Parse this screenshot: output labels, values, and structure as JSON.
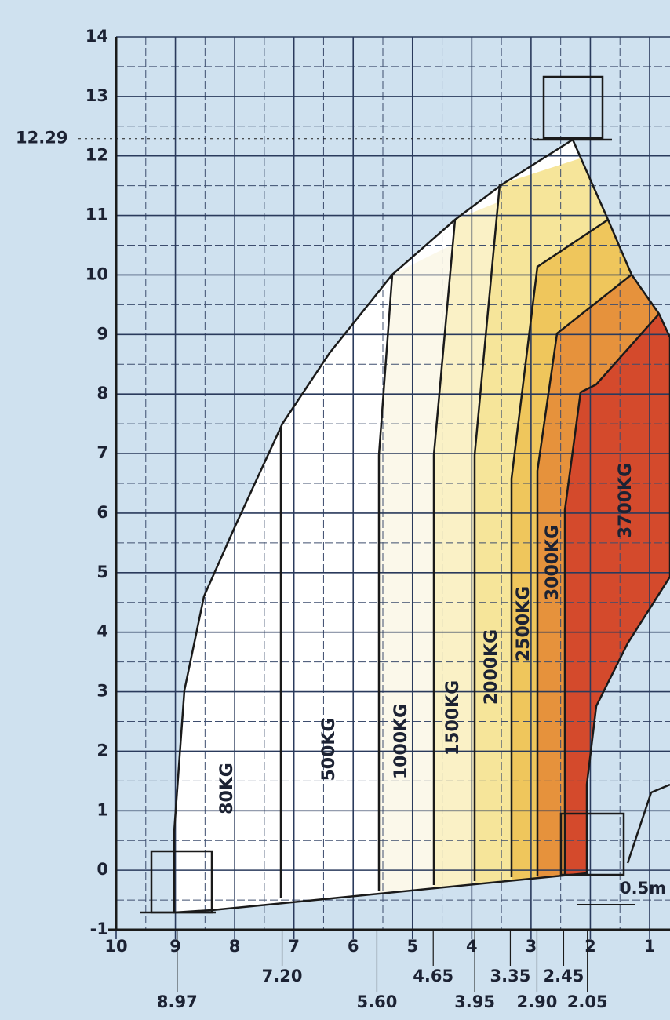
{
  "y_axis": {
    "ticks": [
      -1,
      0,
      1,
      2,
      3,
      4,
      5,
      6,
      7,
      8,
      9,
      10,
      11,
      12,
      13,
      14
    ],
    "annotation": 12.29
  },
  "x_axis": {
    "ticks": [
      10,
      9,
      8,
      7,
      6,
      5,
      4,
      3,
      2,
      1
    ]
  },
  "reach_labels": {
    "upper": [
      {
        "value": 7.2,
        "label": "7.20"
      },
      4.65,
      3.35,
      2.45
    ],
    "lower": [
      8.97,
      {
        "value": 5.6,
        "label": "5.60"
      },
      3.95,
      {
        "value": 2.9,
        "label": "2.90"
      },
      2.05
    ]
  },
  "zones": [
    "80KG",
    "500KG",
    "1000KG",
    "1500KG",
    "2000KG",
    "2500KG",
    "3000KG",
    "3700KG"
  ],
  "scale_label": "0.5m"
}
